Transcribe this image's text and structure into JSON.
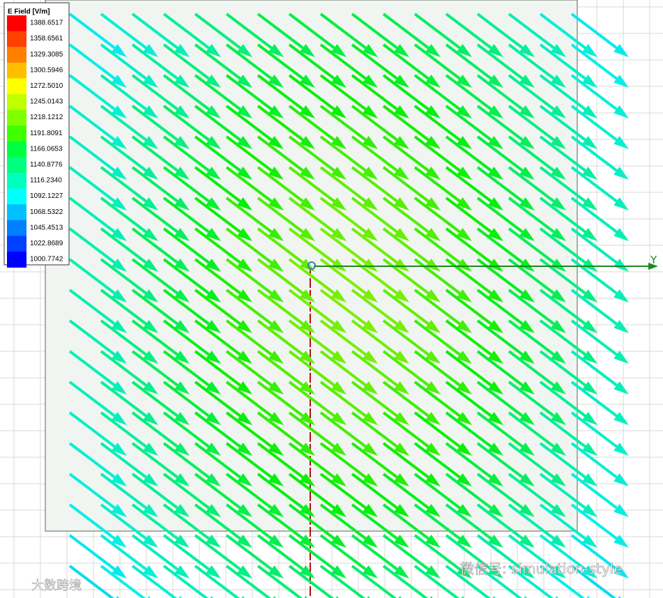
{
  "legend": {
    "title": "E Field [V/m]",
    "levels": [
      {
        "label": "1388.6517",
        "color": "#ff0000"
      },
      {
        "label": "1358.6561",
        "color": "#ff4000"
      },
      {
        "label": "1329.3085",
        "color": "#ff8000"
      },
      {
        "label": "1300.5946",
        "color": "#ffbf00"
      },
      {
        "label": "1272.5010",
        "color": "#ffff00"
      },
      {
        "label": "1245.0143",
        "color": "#bfff00"
      },
      {
        "label": "1218.1212",
        "color": "#80ff00"
      },
      {
        "label": "1191.8091",
        "color": "#40ff00"
      },
      {
        "label": "1166.0653",
        "color": "#00ff40"
      },
      {
        "label": "1140.8776",
        "color": "#00ff80"
      },
      {
        "label": "1116.2340",
        "color": "#00ffbf"
      },
      {
        "label": "1092.1227",
        "color": "#00ffff"
      },
      {
        "label": "1068.5322",
        "color": "#00bfff"
      },
      {
        "label": "1045.4513",
        "color": "#0080ff"
      },
      {
        "label": "1022.8689",
        "color": "#0040ff"
      },
      {
        "label": "1000.7742",
        "color": "#0000ff"
      }
    ]
  },
  "axis": {
    "label": "Y"
  },
  "watermarks": {
    "right": "微信号: simulation-style",
    "left": "大数跨境"
  }
}
